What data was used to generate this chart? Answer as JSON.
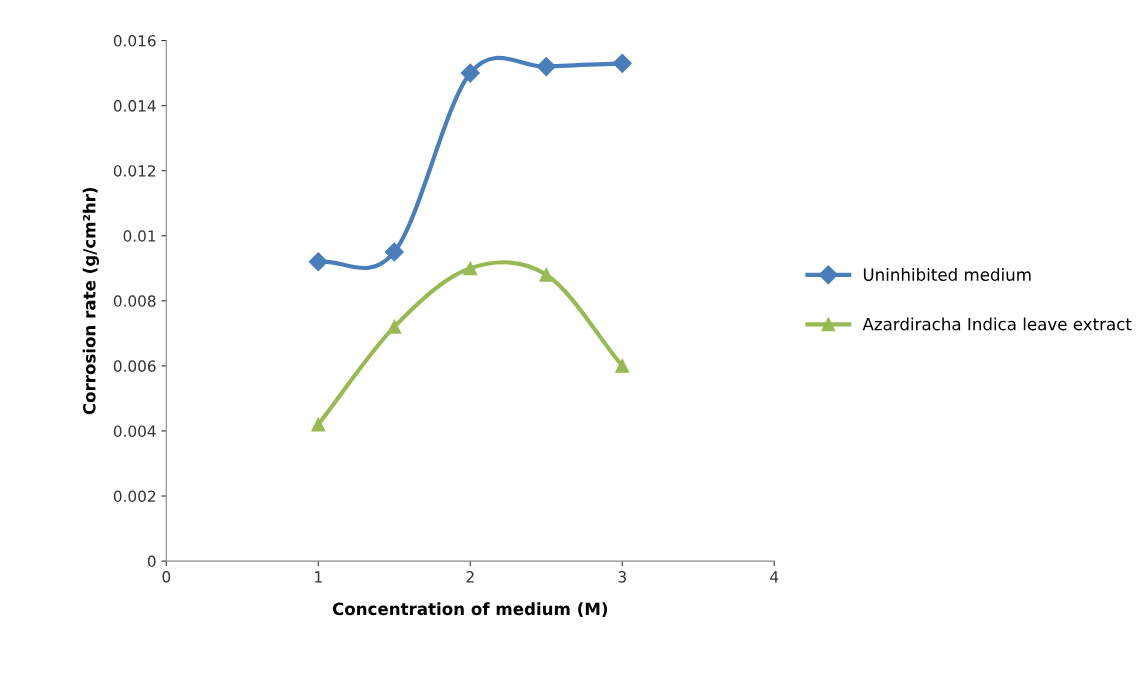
{
  "chart_data": {
    "type": "line",
    "xlabel": "Concentration of medium (M)",
    "ylabel": "Corrosion rate (g/cm²hr)",
    "x": [
      1,
      1.5,
      2,
      2.5,
      3
    ],
    "series": [
      {
        "name": "Uninhibited medium",
        "color": "#4a7ebb",
        "marker": "diamond",
        "values": [
          0.0092,
          0.0095,
          0.015,
          0.0152,
          0.0153
        ]
      },
      {
        "name": "Azardiracha Indica leave extract",
        "color": "#98b954",
        "marker": "triangle",
        "values": [
          0.0042,
          0.0072,
          0.009,
          0.0088,
          0.006
        ]
      }
    ],
    "xlim": [
      0,
      4
    ],
    "xticks": [
      0,
      1,
      2,
      3,
      4
    ],
    "ylim": [
      0,
      0.016
    ],
    "yticks": [
      0,
      0.002,
      0.004,
      0.006,
      0.008,
      0.01,
      0.012,
      0.014,
      0.016
    ],
    "grid": false,
    "legend": "right",
    "line_style": "solid"
  }
}
